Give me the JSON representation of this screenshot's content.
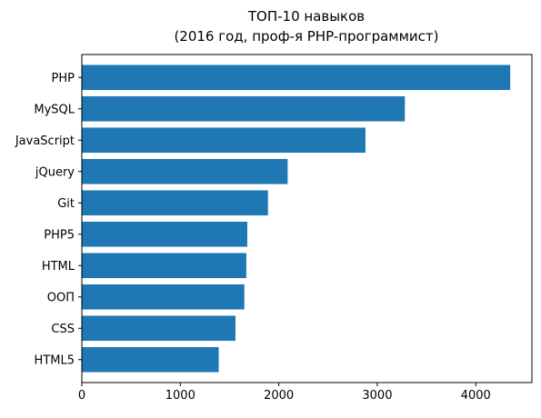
{
  "chart_data": {
    "type": "bar",
    "orientation": "horizontal",
    "title": [
      "ТОП-10 навыков",
      "(2016 год, проф-я PHP-программист)"
    ],
    "categories": [
      "PHP",
      "MySQL",
      "JavaScript",
      "jQuery",
      "Git",
      "PHP5",
      "HTML",
      "ООП",
      "CSS",
      "HTML5"
    ],
    "values": [
      4350,
      3280,
      2880,
      2090,
      1890,
      1680,
      1670,
      1650,
      1560,
      1390
    ],
    "xlim": [
      0,
      4570
    ],
    "xticks": [
      0,
      1000,
      2000,
      3000,
      4000
    ],
    "xlabel": "",
    "ylabel": "",
    "grid": false,
    "bar_color": "#1f77b4"
  }
}
